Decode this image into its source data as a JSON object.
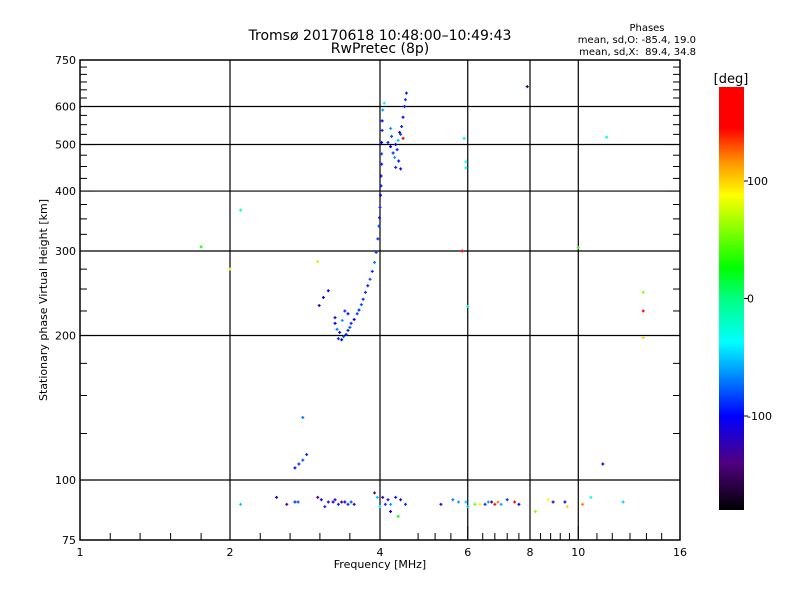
{
  "chart_data": {
    "type": "scatter",
    "title": "Tromsø 20170618 10:48:00–10:49:43",
    "subtitle": "RwPretec (8p)",
    "xlabel": "Frequency [MHz]",
    "ylabel": "Stationary phase Virtual Height [km]",
    "xscale": "log",
    "yscale": "log",
    "xlim": [
      1,
      16
    ],
    "ylim": [
      75,
      750
    ],
    "xticks": [
      "1",
      "2",
      "4",
      "6",
      "8",
      "10",
      "16"
    ],
    "xtick_values": [
      1,
      2,
      4,
      6,
      8,
      10,
      16
    ],
    "yticks": [
      "75",
      "100",
      "200",
      "300",
      "400",
      "500",
      "600",
      "750"
    ],
    "ytick_values": [
      75,
      100,
      200,
      300,
      400,
      500,
      600,
      750
    ],
    "grid": true,
    "grid_x": [
      2,
      4,
      6,
      8,
      10
    ],
    "grid_y": [
      100,
      200,
      300,
      400,
      500,
      600
    ],
    "stats": {
      "title": "Phases",
      "line_o": "mean, sd,O: -85.4, 19.0",
      "line_x": "mean, sd,X:  89.4, 34.8"
    },
    "colorbar": {
      "label": "[deg]",
      "range": [
        -180,
        180
      ],
      "ticks": [
        "100",
        "0",
        "-100"
      ],
      "tick_values": [
        100,
        0,
        -100
      ]
    },
    "series": [
      {
        "name": "echoes",
        "fields": [
          "freq_MHz",
          "height_km",
          "phase_deg"
        ],
        "points": [
          [
            3.3,
            197,
            -90
          ],
          [
            3.35,
            196,
            -100
          ],
          [
            3.38,
            199,
            -80
          ],
          [
            3.42,
            201,
            -90
          ],
          [
            3.45,
            205,
            -95
          ],
          [
            3.48,
            208,
            -80
          ],
          [
            3.5,
            212,
            -90
          ],
          [
            3.55,
            216,
            -100
          ],
          [
            3.6,
            222,
            -85
          ],
          [
            3.63,
            226,
            -95
          ],
          [
            3.67,
            232,
            -80
          ],
          [
            3.7,
            238,
            -90
          ],
          [
            3.74,
            246,
            -85
          ],
          [
            3.78,
            254,
            -95
          ],
          [
            3.82,
            262,
            -80
          ],
          [
            3.86,
            272,
            -90
          ],
          [
            3.9,
            284,
            -70
          ],
          [
            3.93,
            298,
            -85
          ],
          [
            3.96,
            318,
            -90
          ],
          [
            3.98,
            338,
            -80
          ],
          [
            3.99,
            352,
            -95
          ],
          [
            4.0,
            370,
            -90
          ],
          [
            4.01,
            392,
            -100
          ],
          [
            4.02,
            410,
            -90
          ],
          [
            4.02,
            430,
            -110
          ],
          [
            4.03,
            455,
            -95
          ],
          [
            4.03,
            478,
            -85
          ],
          [
            4.03,
            505,
            -100
          ],
          [
            4.04,
            535,
            -90
          ],
          [
            4.04,
            560,
            -100
          ],
          [
            4.05,
            590,
            -60
          ],
          [
            4.08,
            610,
            -40
          ],
          [
            3.25,
            212,
            -100
          ],
          [
            3.25,
            218,
            -110
          ],
          [
            3.28,
            206,
            -70
          ],
          [
            3.32,
            203,
            -110
          ],
          [
            3.4,
            225,
            -90
          ],
          [
            3.45,
            222,
            -100
          ],
          [
            3.36,
            215,
            -60
          ],
          [
            4.15,
            505,
            -90
          ],
          [
            4.2,
            495,
            -100
          ],
          [
            4.22,
            520,
            -80
          ],
          [
            4.25,
            480,
            -90
          ],
          [
            4.28,
            470,
            -60
          ],
          [
            4.3,
            500,
            -110
          ],
          [
            4.33,
            488,
            -90
          ],
          [
            4.36,
            462,
            -95
          ],
          [
            4.4,
            525,
            -80
          ],
          [
            4.42,
            545,
            -90
          ],
          [
            4.45,
            570,
            -100
          ],
          [
            4.48,
            600,
            -90
          ],
          [
            4.5,
            620,
            -85
          ],
          [
            4.52,
            640,
            -95
          ],
          [
            4.3,
            448,
            -90
          ],
          [
            4.4,
            445,
            -100
          ],
          [
            4.2,
            540,
            -60
          ],
          [
            4.35,
            510,
            -50
          ],
          [
            4.45,
            515,
            175
          ],
          [
            4.38,
            530,
            -130
          ],
          [
            2.7,
            106,
            -100
          ],
          [
            2.75,
            108,
            -90
          ],
          [
            2.8,
            110,
            -80
          ],
          [
            2.85,
            113,
            -90
          ],
          [
            2.8,
            135,
            -70
          ],
          [
            3.08,
            240,
            -110
          ],
          [
            3.15,
            248,
            -100
          ],
          [
            3.02,
            231,
            -130
          ],
          [
            1.75,
            306,
            30
          ],
          [
            2.1,
            365,
            -20
          ],
          [
            2.0,
            275,
            80
          ],
          [
            3.0,
            285,
            70
          ],
          [
            5.85,
            300,
            175
          ],
          [
            5.9,
            515,
            -40
          ],
          [
            5.95,
            460,
            -30
          ],
          [
            5.95,
            447,
            -30
          ],
          [
            6.0,
            230,
            -40
          ],
          [
            7.9,
            660,
            -150
          ],
          [
            11.4,
            518,
            -40
          ],
          [
            11.2,
            108,
            -110
          ],
          [
            10.0,
            305,
            40
          ],
          [
            13.5,
            246,
            60
          ],
          [
            13.5,
            225,
            150
          ],
          [
            13.5,
            198,
            100
          ],
          [
            2.1,
            89,
            -50
          ],
          [
            2.48,
            92,
            -120
          ],
          [
            2.6,
            89,
            -140
          ],
          [
            2.7,
            90,
            -90
          ],
          [
            2.74,
            90,
            -80
          ],
          [
            3.0,
            92,
            -140
          ],
          [
            3.05,
            91,
            -110
          ],
          [
            3.1,
            88,
            -90
          ],
          [
            3.15,
            90,
            -130
          ],
          [
            3.22,
            90,
            -100
          ],
          [
            3.25,
            91,
            -120
          ],
          [
            3.3,
            89,
            -90
          ],
          [
            3.35,
            90,
            -140
          ],
          [
            3.4,
            90,
            -100
          ],
          [
            3.45,
            89,
            -90
          ],
          [
            3.5,
            90,
            -80
          ],
          [
            3.55,
            89,
            -130
          ],
          [
            3.9,
            94,
            -140
          ],
          [
            3.95,
            92,
            -50
          ],
          [
            4.0,
            88,
            -40
          ],
          [
            4.05,
            92,
            -130
          ],
          [
            4.1,
            89,
            -90
          ],
          [
            4.15,
            91,
            -110
          ],
          [
            4.2,
            89,
            -60
          ],
          [
            4.3,
            92,
            -90
          ],
          [
            4.4,
            91,
            -130
          ],
          [
            4.5,
            89,
            -90
          ],
          [
            4.35,
            84,
            30
          ],
          [
            4.2,
            86,
            -120
          ],
          [
            5.3,
            89,
            -110
          ],
          [
            5.6,
            91,
            -70
          ],
          [
            5.75,
            90,
            -60
          ],
          [
            5.95,
            90,
            -50
          ],
          [
            6.0,
            88,
            -50
          ],
          [
            6.2,
            89,
            50
          ],
          [
            6.35,
            89,
            90
          ],
          [
            6.5,
            89,
            -90
          ],
          [
            6.6,
            90,
            -60
          ],
          [
            6.7,
            90,
            -140
          ],
          [
            6.8,
            89,
            160
          ],
          [
            6.9,
            90,
            120
          ],
          [
            7.0,
            89,
            -60
          ],
          [
            7.2,
            91,
            -90
          ],
          [
            7.45,
            90,
            150
          ],
          [
            7.6,
            89,
            -100
          ],
          [
            8.2,
            86,
            60
          ],
          [
            8.7,
            91,
            90
          ],
          [
            8.9,
            90,
            -120
          ],
          [
            9.4,
            90,
            -110
          ],
          [
            9.5,
            88,
            100
          ],
          [
            10.2,
            89,
            120
          ],
          [
            10.6,
            92,
            -30
          ],
          [
            12.3,
            90,
            -50
          ]
        ]
      }
    ]
  }
}
